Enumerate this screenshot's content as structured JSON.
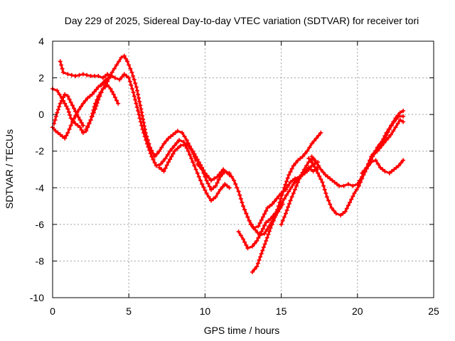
{
  "chart_data": {
    "type": "scatter",
    "title": "Day 229 of 2025, Sidereal Day-to-day VTEC variation (SDTVAR) for receiver tori",
    "xlabel": "GPS time / hours",
    "ylabel": "SDTVAR / TECUs",
    "xlim": [
      0,
      25
    ],
    "ylim": [
      -10,
      4
    ],
    "xticks": [
      "0",
      "5",
      "10",
      "15",
      "20",
      "25"
    ],
    "yticks": [
      "-10",
      "-8",
      "-6",
      "-4",
      "-2",
      "0",
      "2",
      "4"
    ],
    "grid": true,
    "legend": "none",
    "color": "#ff0000",
    "marker": "plus",
    "series": [
      {
        "x": [
          0.5,
          0.7,
          1.0,
          1.5,
          2.0,
          2.5,
          3.0,
          3.3,
          3.6,
          3.9
        ],
        "y": [
          2.9,
          2.3,
          2.2,
          2.1,
          2.2,
          2.1,
          2.1,
          2.0,
          2.2,
          2.1
        ]
      },
      {
        "x": [
          0.0,
          0.3,
          0.6,
          0.8,
          1.0,
          1.2,
          1.5,
          1.8,
          2.0,
          2.2,
          2.5,
          2.8,
          3.0,
          3.3,
          3.6,
          3.8,
          4.0,
          4.3
        ],
        "y": [
          1.4,
          1.3,
          0.9,
          0.6,
          0.3,
          -0.2,
          -0.5,
          -0.7,
          -1.0,
          -0.9,
          -0.3,
          0.6,
          1.0,
          1.4,
          1.6,
          1.4,
          1.1,
          0.6
        ]
      },
      {
        "x": [
          0.0,
          0.2,
          0.5,
          0.8,
          1.0,
          1.3,
          1.6,
          2.0,
          2.3,
          2.6,
          3.0,
          3.3,
          3.5
        ],
        "y": [
          -0.7,
          -0.9,
          -1.1,
          -1.3,
          -1.0,
          -0.4,
          0.1,
          0.6,
          0.9,
          1.1,
          1.5,
          1.7,
          1.8
        ]
      },
      {
        "x": [
          0.1,
          0.3,
          0.5,
          0.8,
          1.0,
          1.3,
          1.6,
          2.0
        ],
        "y": [
          -0.5,
          0.1,
          0.6,
          1.1,
          1.0,
          0.5,
          0.0,
          -0.6
        ]
      },
      {
        "x": [
          2.2,
          2.5,
          2.8,
          3.0,
          3.3,
          3.6,
          3.9,
          4.2,
          4.5,
          4.7,
          4.9,
          5.2,
          5.5,
          5.8,
          6.1,
          6.4,
          6.7,
          7.0,
          7.3,
          7.6,
          7.9,
          8.2,
          8.5,
          8.8,
          9.1,
          9.4
        ],
        "y": [
          -0.8,
          -0.3,
          0.3,
          0.8,
          1.4,
          1.8,
          2.3,
          2.7,
          3.1,
          3.2,
          2.9,
          2.3,
          1.5,
          0.3,
          -1.0,
          -1.8,
          -2.3,
          -2.0,
          -1.6,
          -1.3,
          -1.1,
          -0.9,
          -1.0,
          -1.4,
          -1.9,
          -2.5
        ]
      },
      {
        "x": [
          3.2,
          3.5,
          3.8,
          4.1,
          4.4,
          4.7,
          5.0,
          5.3,
          5.6,
          5.9,
          6.2,
          6.5,
          6.8,
          7.1,
          7.4,
          7.7,
          8.0,
          8.3,
          8.6,
          8.9,
          9.2,
          9.5,
          9.8,
          10.1,
          10.4,
          10.7,
          11.0,
          11.3,
          11.6
        ],
        "y": [
          1.6,
          1.9,
          2.1,
          2.0,
          1.9,
          2.2,
          2.0,
          1.2,
          0.2,
          -0.8,
          -1.6,
          -2.3,
          -2.8,
          -2.7,
          -2.4,
          -2.0,
          -1.7,
          -1.4,
          -1.5,
          -2.0,
          -2.6,
          -3.2,
          -3.8,
          -4.3,
          -4.7,
          -4.5,
          -4.1,
          -3.8,
          -4.0
        ]
      },
      {
        "x": [
          7.0,
          7.3,
          7.6,
          8.0,
          8.4,
          8.8,
          9.2,
          9.6,
          10.0,
          10.4,
          10.8,
          11.2,
          11.6
        ],
        "y": [
          -2.9,
          -3.1,
          -2.6,
          -2.0,
          -1.7,
          -1.6,
          -2.0,
          -2.6,
          -3.2,
          -3.6,
          -3.4,
          -3.0,
          -3.3
        ]
      },
      {
        "x": [
          9.5,
          9.8,
          10.1,
          10.4,
          10.7,
          11.0,
          11.3,
          11.6,
          11.9,
          12.2,
          12.5,
          12.8,
          13.0,
          13.3,
          13.6,
          13.9,
          14.2,
          14.5,
          14.8,
          15.1
        ],
        "y": [
          -2.7,
          -3.0,
          -3.6,
          -4.1,
          -3.9,
          -3.4,
          -3.1,
          -3.2,
          -3.6,
          -4.2,
          -5.0,
          -5.6,
          -6.0,
          -6.3,
          -6.6,
          -6.5,
          -6.1,
          -5.7,
          -5.3,
          -4.9
        ]
      },
      {
        "x": [
          12.2,
          12.5,
          12.8,
          13.1,
          13.4,
          13.7,
          14.0,
          14.3,
          14.6,
          14.9,
          15.2,
          15.5,
          15.8,
          16.1,
          16.4,
          16.7,
          17.0,
          17.4
        ],
        "y": [
          -6.4,
          -6.8,
          -7.3,
          -7.2,
          -6.9,
          -6.4,
          -5.9,
          -5.7,
          -5.4,
          -5.0,
          -4.6,
          -4.2,
          -3.8,
          -3.5,
          -3.3,
          -3.1,
          -2.8,
          -2.6
        ]
      },
      {
        "x": [
          12.6,
          12.9,
          13.2,
          13.5,
          13.8,
          14.1,
          14.4,
          14.7,
          15.0,
          15.3,
          15.6,
          15.9,
          16.2,
          16.5,
          16.8,
          17.1,
          17.4
        ],
        "y": [
          -5.2,
          -5.8,
          -6.2,
          -6.1,
          -5.6,
          -5.1,
          -4.9,
          -4.6,
          -4.3,
          -4.1,
          -3.7,
          -3.5,
          -3.4,
          -3.2,
          -2.9,
          -3.1,
          -2.9
        ]
      },
      {
        "x": [
          13.1,
          13.4,
          13.7,
          14.0,
          14.3,
          14.6,
          14.9,
          15.2,
          15.5,
          15.8,
          16.1,
          16.4,
          16.7,
          17.0,
          17.3,
          17.6
        ],
        "y": [
          -8.6,
          -8.3,
          -7.6,
          -6.9,
          -6.2,
          -5.6,
          -4.8,
          -4.0,
          -3.3,
          -2.8,
          -2.5,
          -2.3,
          -2.0,
          -1.6,
          -1.3,
          -1.0
        ]
      },
      {
        "x": [
          15.0,
          15.3,
          15.6,
          15.9,
          16.2,
          16.5,
          16.8,
          17.1
        ],
        "y": [
          -6.0,
          -5.4,
          -4.7,
          -4.1,
          -3.5,
          -3.0,
          -2.6,
          -2.4
        ]
      },
      {
        "x": [
          16.8,
          17.1,
          17.4,
          17.7,
          18.0,
          18.3,
          18.6,
          18.9,
          19.2,
          19.5,
          19.8,
          20.1,
          20.4,
          20.7,
          21.0,
          21.3,
          21.6,
          21.9,
          22.2,
          22.5,
          22.8,
          23.0
        ],
        "y": [
          -2.4,
          -2.7,
          -3.2,
          -3.7,
          -4.5,
          -5.1,
          -5.4,
          -5.5,
          -5.3,
          -4.8,
          -4.3,
          -3.9,
          -3.3,
          -2.8,
          -2.3,
          -1.8,
          -1.5,
          -1.0,
          -0.6,
          -0.2,
          0.1,
          0.2
        ]
      },
      {
        "x": [
          17.0,
          17.3,
          17.6,
          17.9,
          18.2,
          18.5,
          18.8,
          19.1,
          19.4,
          19.7,
          20.0,
          20.3,
          20.6,
          20.9,
          21.2,
          21.5,
          21.8,
          22.1,
          22.4,
          22.7,
          23.0
        ],
        "y": [
          -2.3,
          -2.6,
          -3.0,
          -3.3,
          -3.5,
          -3.7,
          -3.9,
          -3.9,
          -3.8,
          -3.9,
          -3.8,
          -3.4,
          -2.9,
          -2.3,
          -2.0,
          -1.6,
          -1.3,
          -0.8,
          -0.4,
          -0.1,
          -0.1
        ]
      },
      {
        "x": [
          20.3,
          20.6,
          20.9,
          21.2,
          21.5,
          21.8,
          22.1,
          22.4,
          22.7,
          23.0
        ],
        "y": [
          -3.2,
          -2.9,
          -2.6,
          -2.5,
          -2.9,
          -3.1,
          -3.2,
          -3.0,
          -2.8,
          -2.5
        ]
      },
      {
        "x": [
          21.0,
          21.3,
          21.6,
          21.9,
          22.2,
          22.5,
          22.8,
          23.0
        ],
        "y": [
          -2.2,
          -2.0,
          -1.7,
          -1.4,
          -1.1,
          -0.7,
          -0.3,
          -0.4
        ]
      }
    ]
  }
}
